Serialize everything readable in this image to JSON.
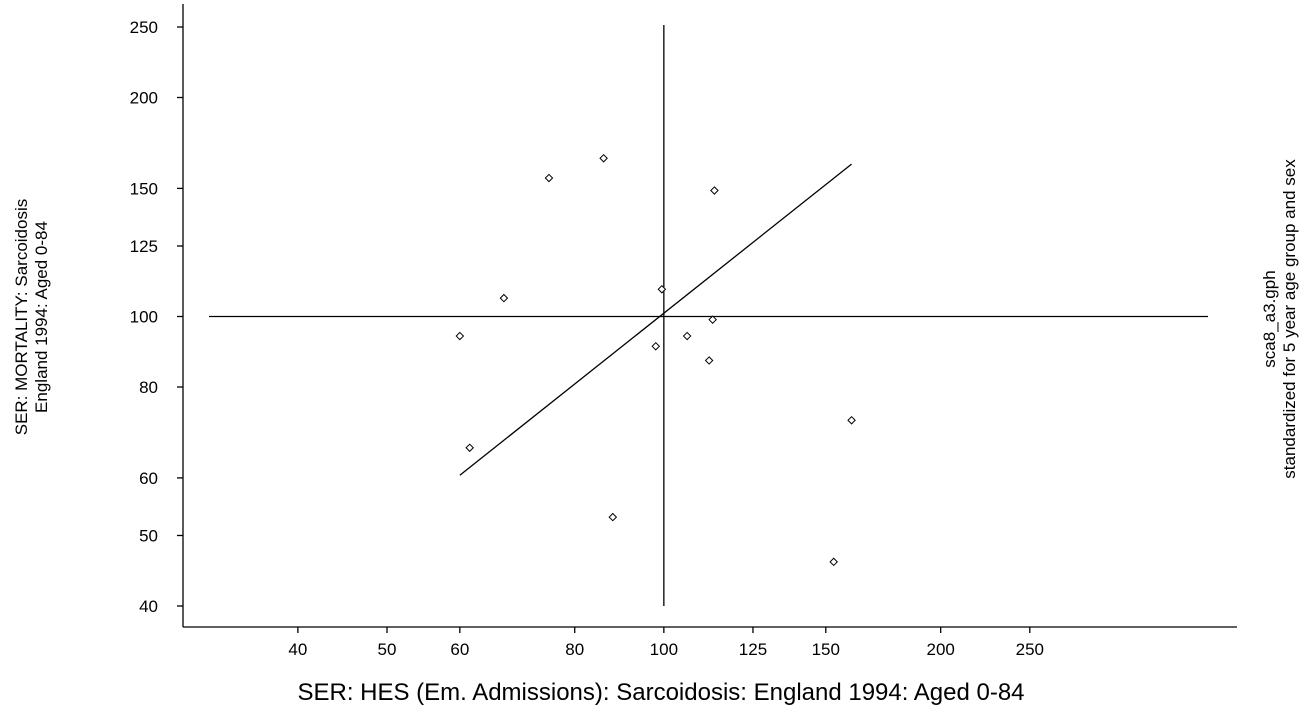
{
  "chart_data": {
    "type": "scatter",
    "xscale": "log",
    "yscale": "log",
    "xlabel": "SER: HES (Em. Admissions): Sarcoidosis: England 1994: Aged 0-84",
    "ylabel_lines": [
      "SER: MORTALITY: Sarcoidosis",
      "England 1994: Aged 0-84"
    ],
    "right_note_lines": [
      "sca8_a3.gph",
      "standardized for 5 year age group and sex"
    ],
    "xticks": [
      40,
      50,
      60,
      80,
      100,
      125,
      150,
      200,
      250
    ],
    "yticks": [
      40,
      50,
      60,
      80,
      100,
      125,
      150,
      200,
      250
    ],
    "xlim": [
      30,
      420
    ],
    "ylim": [
      40,
      250
    ],
    "reference_lines": {
      "x": 100,
      "y": 100
    },
    "fit_line": {
      "x": [
        60,
        160
      ],
      "y": [
        60.5,
        162
      ]
    },
    "points": [
      {
        "x": 60,
        "y": 94
      },
      {
        "x": 61.5,
        "y": 66
      },
      {
        "x": 67,
        "y": 106
      },
      {
        "x": 75,
        "y": 155
      },
      {
        "x": 86,
        "y": 165
      },
      {
        "x": 88,
        "y": 53
      },
      {
        "x": 98,
        "y": 91
      },
      {
        "x": 99.5,
        "y": 109
      },
      {
        "x": 106,
        "y": 94
      },
      {
        "x": 112,
        "y": 87
      },
      {
        "x": 113,
        "y": 99
      },
      {
        "x": 113.5,
        "y": 149
      },
      {
        "x": 153,
        "y": 46
      },
      {
        "x": 160,
        "y": 72
      }
    ]
  }
}
